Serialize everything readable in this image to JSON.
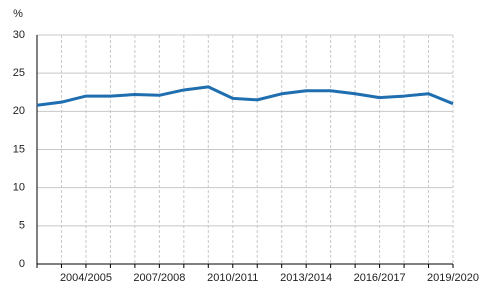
{
  "chart_data": {
    "type": "line",
    "y_label": "%",
    "categories": [
      null,
      null,
      "2004/2005",
      null,
      null,
      "2007/2008",
      null,
      null,
      "2010/2011",
      null,
      null,
      "2013/2014",
      null,
      null,
      "2016/2017",
      null,
      null,
      "2019/2020"
    ],
    "series": [
      {
        "name": null,
        "color": "#1f6eb0",
        "values": [
          20.8,
          21.2,
          22.0,
          22.0,
          22.2,
          22.1,
          22.8,
          23.2,
          21.7,
          21.5,
          22.3,
          22.7,
          22.7,
          22.3,
          21.8,
          22.0,
          22.3,
          21.0
        ]
      }
    ],
    "ylim": [
      0,
      30
    ],
    "yticks": [
      0,
      5,
      10,
      15,
      20,
      25,
      30
    ],
    "grid": true
  }
}
